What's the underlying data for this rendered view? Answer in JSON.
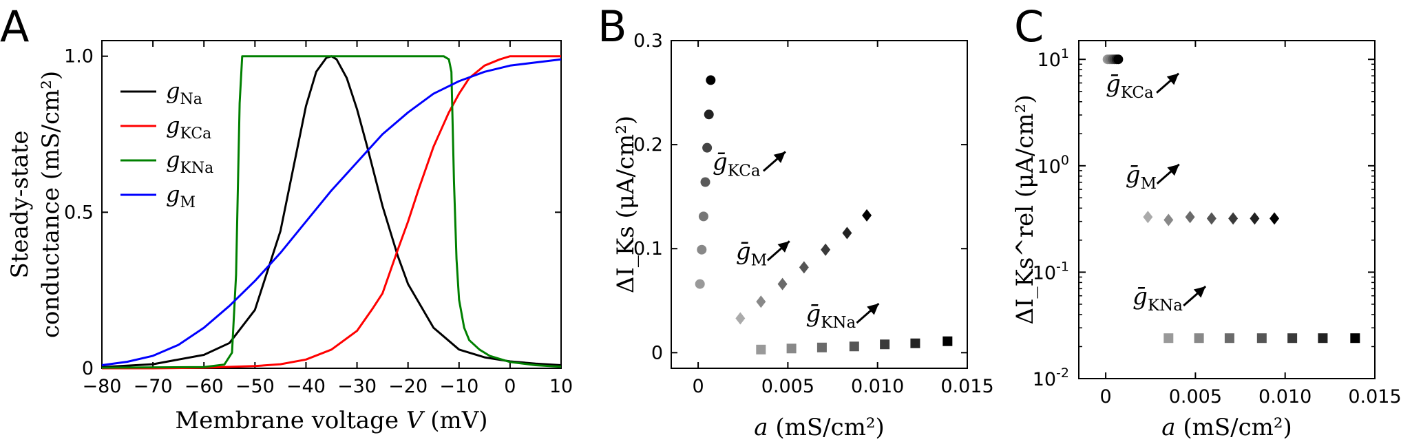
{
  "figure": {
    "panels": [
      {
        "letter": "A"
      },
      {
        "letter": "B"
      },
      {
        "letter": "C"
      }
    ]
  },
  "chart_data": [
    {
      "panel": "A",
      "type": "line",
      "xlabel": "Membrane voltage  V (mV)",
      "xlabel_parts": {
        "text": "Membrane voltage  ",
        "var": "V",
        "unit": " (mV)"
      },
      "ylabel_line1": "Steady-state",
      "ylabel_line2": "conductance (mS/cm²)",
      "xlim": [
        -80,
        10
      ],
      "ylim": [
        0,
        1.05
      ],
      "xticks": [
        -80,
        -70,
        -60,
        -50,
        -40,
        -30,
        -20,
        -10,
        0,
        10
      ],
      "xtick_labels": [
        "−80",
        "−70",
        "−60",
        "−50",
        "−40",
        "−30",
        "−20",
        "−10",
        "0",
        "10"
      ],
      "yticks": [
        0,
        0.5,
        1.0
      ],
      "ytick_labels": [
        "0",
        "0.5",
        "1.0"
      ],
      "legend_position": "upper-left",
      "series": [
        {
          "name": "g_Na",
          "label": "g",
          "label_sub": "Na",
          "color": "#000000",
          "x": [
            -80,
            -70,
            -60,
            -55,
            -50,
            -45,
            -42,
            -40,
            -38,
            -36,
            -35,
            -34,
            -32,
            -30,
            -28,
            -25,
            -22,
            -20,
            -15,
            -10,
            -5,
            0,
            5,
            10
          ],
          "y": [
            0.004,
            0.013,
            0.043,
            0.081,
            0.187,
            0.44,
            0.68,
            0.84,
            0.95,
            0.995,
            1.0,
            0.99,
            0.93,
            0.83,
            0.71,
            0.52,
            0.36,
            0.27,
            0.13,
            0.06,
            0.035,
            0.022,
            0.015,
            0.01
          ]
        },
        {
          "name": "g_KCa",
          "label": "g",
          "label_sub": "KCa",
          "color": "#ff0000",
          "x": [
            -80,
            -70,
            -60,
            -50,
            -45,
            -40,
            -35,
            -30,
            -27,
            -25,
            -22,
            -20,
            -18,
            -15,
            -12,
            -10,
            -8,
            -5,
            -2,
            0,
            5,
            10
          ],
          "y": [
            0.0,
            0.0,
            0.002,
            0.007,
            0.013,
            0.028,
            0.06,
            0.12,
            0.19,
            0.24,
            0.38,
            0.47,
            0.57,
            0.71,
            0.82,
            0.88,
            0.93,
            0.97,
            0.99,
            1.0,
            1.0,
            1.0
          ]
        },
        {
          "name": "g_KNa",
          "label": "g",
          "label_sub": "KNa",
          "color": "#008000",
          "x": [
            -80,
            -60,
            -56,
            -54.5,
            -53.7,
            -53,
            -52.5,
            -50,
            -40,
            -30,
            -20,
            -13,
            -12,
            -11.5,
            -11,
            -10.5,
            -10,
            -9,
            -8,
            -6,
            -4,
            0,
            5,
            10
          ],
          "y": [
            0.002,
            0.004,
            0.012,
            0.05,
            0.3,
            0.85,
            1.0,
            1.0,
            1.0,
            1.0,
            1.0,
            1.0,
            0.99,
            0.95,
            0.6,
            0.35,
            0.22,
            0.13,
            0.09,
            0.06,
            0.04,
            0.02,
            0.01,
            0.005
          ]
        },
        {
          "name": "g_M",
          "label": "g",
          "label_sub": "M",
          "color": "#0000ff",
          "x": [
            -80,
            -75,
            -70,
            -65,
            -60,
            -55,
            -50,
            -45,
            -40,
            -35,
            -30,
            -25,
            -20,
            -15,
            -10,
            -5,
            0,
            5,
            10
          ],
          "y": [
            0.01,
            0.021,
            0.04,
            0.075,
            0.13,
            0.2,
            0.28,
            0.37,
            0.47,
            0.57,
            0.66,
            0.75,
            0.82,
            0.88,
            0.92,
            0.95,
            0.97,
            0.98,
            0.99
          ]
        }
      ]
    },
    {
      "panel": "B",
      "type": "scatter",
      "xlabel_var": "a",
      "xlabel_unit": " (mS/cm²)",
      "ylabel": "ΔI_Ks (μA/cm²)",
      "xlim": [
        -0.0015,
        0.015
      ],
      "ylim": [
        -0.015,
        0.3
      ],
      "xticks": [
        0,
        0.005,
        0.01,
        0.015
      ],
      "xtick_labels": [
        "0",
        "0.005",
        "0.010",
        "0.015"
      ],
      "yticks": [
        0,
        0.1,
        0.2,
        0.3
      ],
      "ytick_labels": [
        "0",
        "0.1",
        "0.2",
        "0.3"
      ],
      "series": [
        {
          "name": "ḡ_KCa",
          "marker": "circle",
          "x": [
            0.0001,
            0.0002,
            0.0003,
            0.0004,
            0.0005,
            0.0006,
            0.0007
          ],
          "y": [
            0.066,
            0.099,
            0.131,
            0.164,
            0.197,
            0.229,
            0.262
          ],
          "grays": [
            "#999999",
            "#888888",
            "#777777",
            "#5a5a5a",
            "#444444",
            "#222222",
            "#000000"
          ]
        },
        {
          "name": "ḡ_M",
          "marker": "diamond",
          "x": [
            0.00235,
            0.0035,
            0.0047,
            0.0059,
            0.0071,
            0.0083,
            0.0094
          ],
          "y": [
            0.033,
            0.049,
            0.066,
            0.082,
            0.099,
            0.115,
            0.132
          ],
          "grays": [
            "#aaaaaa",
            "#888888",
            "#6a6a6a",
            "#555555",
            "#3a3a3a",
            "#222222",
            "#000000"
          ]
        },
        {
          "name": "ḡ_KNa",
          "marker": "square",
          "x": [
            0.0035,
            0.0052,
            0.0069,
            0.0087,
            0.0104,
            0.0121,
            0.0139
          ],
          "y": [
            0.003,
            0.004,
            0.005,
            0.006,
            0.008,
            0.009,
            0.011
          ],
          "grays": [
            "#999999",
            "#888888",
            "#6a6a6a",
            "#555555",
            "#3a3a3a",
            "#222222",
            "#000000"
          ]
        }
      ],
      "annotations": [
        {
          "text": "ḡ",
          "sub": "KCa",
          "x": 0.0008,
          "y": 0.176
        },
        {
          "text": "ḡ",
          "sub": "M",
          "x": 0.0021,
          "y": 0.09
        },
        {
          "text": "ḡ",
          "sub": "KNa",
          "x": 0.006,
          "y": 0.03
        }
      ]
    },
    {
      "panel": "C",
      "type": "scatter",
      "xlabel_var": "a",
      "xlabel_unit": " (mS/cm²)",
      "ylabel": "ΔI_Ks^rel (μA/cm²)",
      "yscale": "log",
      "xlim": [
        -0.0015,
        0.015
      ],
      "ylim": [
        0.01,
        15
      ],
      "xticks": [
        0,
        0.005,
        0.01,
        0.015
      ],
      "xtick_labels": [
        "0",
        "0.005",
        "0.010",
        "0.015"
      ],
      "yticks": [
        0.01,
        0.1,
        1,
        10
      ],
      "ytick_bases": [
        "10",
        "10",
        "10",
        "10"
      ],
      "ytick_exps": [
        "-2",
        "-1",
        "0",
        "1"
      ],
      "series": [
        {
          "name": "ḡ_KCa",
          "marker": "circle",
          "x": [
            0.0001,
            0.0002,
            0.0003,
            0.0004,
            0.0005,
            0.0006,
            0.0007
          ],
          "y": [
            10,
            10,
            10,
            10,
            10,
            10,
            10
          ],
          "grays": [
            "#999999",
            "#888888",
            "#777777",
            "#5a5a5a",
            "#444444",
            "#222222",
            "#000000"
          ]
        },
        {
          "name": "ḡ_M",
          "marker": "diamond",
          "x": [
            0.00235,
            0.0035,
            0.0047,
            0.0059,
            0.0071,
            0.0083,
            0.0094
          ],
          "y": [
            0.33,
            0.31,
            0.33,
            0.32,
            0.32,
            0.32,
            0.32
          ],
          "grays": [
            "#aaaaaa",
            "#888888",
            "#6a6a6a",
            "#555555",
            "#3a3a3a",
            "#222222",
            "#000000"
          ]
        },
        {
          "name": "ḡ_KNa",
          "marker": "square",
          "x": [
            0.0035,
            0.0052,
            0.0069,
            0.0087,
            0.0104,
            0.0121,
            0.0139
          ],
          "y": [
            0.024,
            0.024,
            0.024,
            0.024,
            0.024,
            0.024,
            0.024
          ],
          "grays": [
            "#999999",
            "#888888",
            "#6a6a6a",
            "#555555",
            "#3a3a3a",
            "#222222",
            "#000000"
          ]
        }
      ],
      "annotations": [
        {
          "text": "ḡ",
          "sub": "KCa",
          "x": 0.0,
          "y": 5.0
        },
        {
          "text": "ḡ",
          "sub": "M",
          "x": 0.0011,
          "y": 0.7
        },
        {
          "text": "ḡ",
          "sub": "KNa",
          "x": 0.0015,
          "y": 0.05
        }
      ]
    }
  ]
}
